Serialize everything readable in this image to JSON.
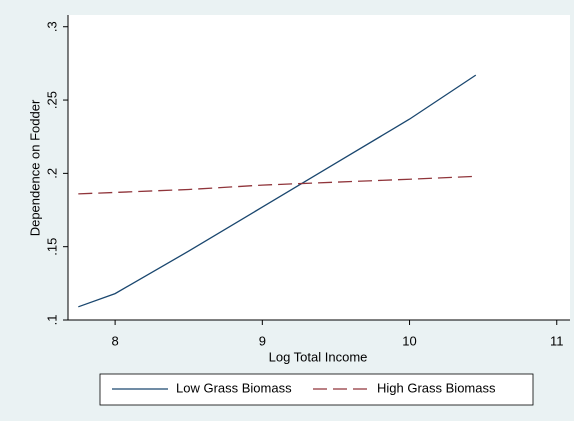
{
  "chart_data": {
    "type": "line",
    "xlabel": "Log Total Income",
    "ylabel": "Dependence on Fodder",
    "x": [
      7.75,
      8,
      8.5,
      9,
      9.5,
      10,
      10.45
    ],
    "series": [
      {
        "name": "Low Grass Biomass",
        "color": "#1a476f",
        "dash": "none",
        "values": [
          0.109,
          0.118,
          0.147,
          0.177,
          0.207,
          0.237,
          0.267
        ]
      },
      {
        "name": "High Grass Biomass",
        "color": "#90353b",
        "dash": "14 6",
        "values": [
          0.186,
          0.187,
          0.189,
          0.192,
          0.194,
          0.196,
          0.198
        ]
      }
    ],
    "xlim": [
      7.68,
      11.09
    ],
    "xticks": [
      8,
      9,
      10,
      11
    ],
    "ylim": [
      0.1,
      0.308
    ],
    "yticks": [
      {
        "value": 0.1,
        "label": ".1"
      },
      {
        "value": 0.15,
        "label": ".15"
      },
      {
        "value": 0.2,
        "label": ".2"
      },
      {
        "value": 0.25,
        "label": ".25"
      },
      {
        "value": 0.3,
        "label": ".3"
      }
    ],
    "grid": false,
    "legend": "bottom"
  }
}
